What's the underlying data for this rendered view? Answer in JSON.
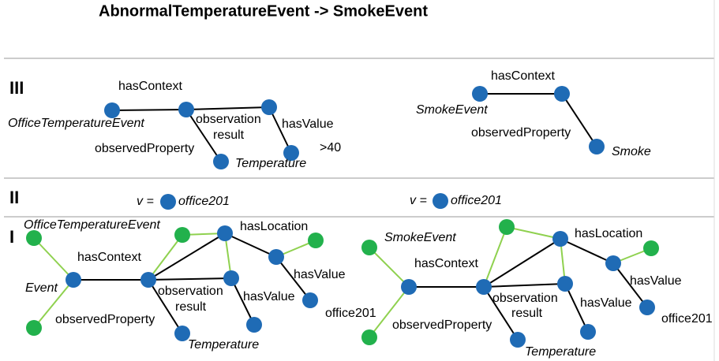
{
  "title": "AbnormalTemperatureEvent -> SmokeEvent",
  "level_3": {
    "label": "III",
    "left": [
      "hasContext",
      "OfficeTemperatureEvent",
      "observation",
      "result",
      "hasValue",
      "observedProperty",
      "Temperature",
      ">40"
    ],
    "right": [
      "hasContext",
      "SmokeEvent",
      "observedProperty",
      "Smoke"
    ]
  },
  "level_2": {
    "label": "II",
    "left": [
      "v =",
      "office201"
    ],
    "right": [
      "v =",
      "office201"
    ]
  },
  "level_1": {
    "label": "I",
    "left": [
      "OfficeTemperatureEvent",
      "hasLocation",
      "hasContext",
      "hasValue",
      "Event",
      "observation",
      "result",
      "hasValue",
      "observedProperty",
      "Temperature",
      "office201"
    ],
    "right": [
      "SmokeEvent",
      "hasLocation",
      "hasContext",
      "hasValue",
      "observation",
      "result",
      "hasValue",
      "observedProperty",
      "Temperature",
      "office201"
    ]
  }
}
